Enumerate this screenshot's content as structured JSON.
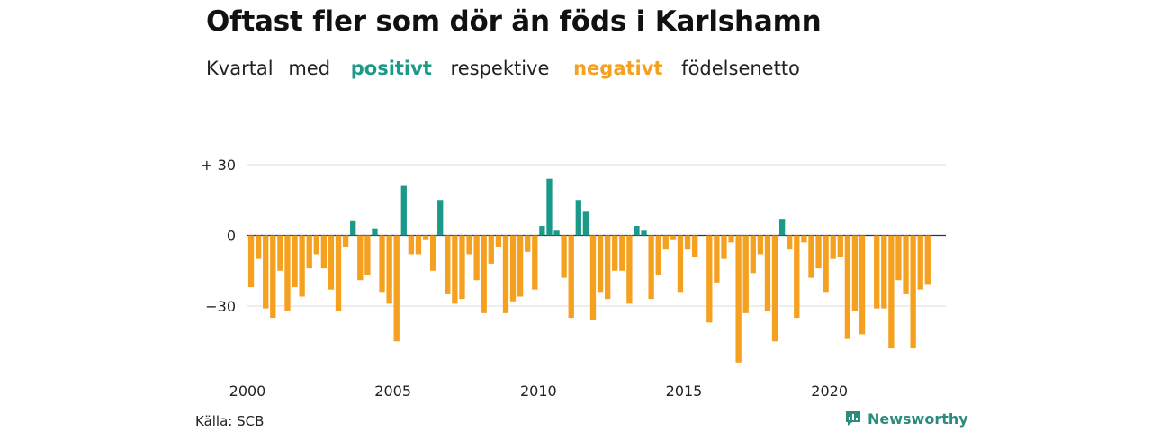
{
  "header": {
    "title": "Oftast fler som dör än föds i Karlshamn",
    "subtitle": {
      "w1": "Kvartal",
      "w2": "med",
      "positive": "positivt",
      "w3": "respektive",
      "negative": "negativt",
      "w4": "födelsenetto"
    }
  },
  "footer": {
    "source": "Källa: SCB",
    "brand": "Newsworthy"
  },
  "colors": {
    "positive": "#1b9a8a",
    "negative": "#f5a01f",
    "brand": "#2b8c7e"
  },
  "chart_data": {
    "type": "bar",
    "title": "Oftast fler som dör än föds i Karlshamn",
    "subtitle": "Kvartal med positivt respektive negativt födelsenetto",
    "xlabel": "",
    "ylabel": "",
    "ylim": [
      -55,
      30
    ],
    "y_ticks": [
      {
        "value": 30,
        "label": "+ 30"
      },
      {
        "value": 0,
        "label": "0"
      },
      {
        "value": -30,
        "label": "−30"
      }
    ],
    "x_ticks": [
      "2000",
      "2005",
      "2010",
      "2015",
      "2020"
    ],
    "grid": true,
    "categories": [
      "2000 Q1",
      "2000 Q2",
      "2000 Q3",
      "2000 Q4",
      "2001 Q1",
      "2001 Q2",
      "2001 Q3",
      "2001 Q4",
      "2002 Q1",
      "2002 Q2",
      "2002 Q3",
      "2002 Q4",
      "2003 Q1",
      "2003 Q2",
      "2003 Q3",
      "2003 Q4",
      "2004 Q1",
      "2004 Q2",
      "2004 Q3",
      "2004 Q4",
      "2005 Q1",
      "2005 Q2",
      "2005 Q3",
      "2005 Q4",
      "2006 Q1",
      "2006 Q2",
      "2006 Q3",
      "2006 Q4",
      "2007 Q1",
      "2007 Q2",
      "2007 Q3",
      "2007 Q4",
      "2008 Q1",
      "2008 Q2",
      "2008 Q3",
      "2008 Q4",
      "2009 Q1",
      "2009 Q2",
      "2009 Q3",
      "2009 Q4",
      "2010 Q1",
      "2010 Q2",
      "2010 Q3",
      "2010 Q4",
      "2011 Q1",
      "2011 Q2",
      "2011 Q3",
      "2011 Q4",
      "2012 Q1",
      "2012 Q2",
      "2012 Q3",
      "2012 Q4",
      "2013 Q1",
      "2013 Q2",
      "2013 Q3",
      "2013 Q4",
      "2014 Q1",
      "2014 Q2",
      "2014 Q3",
      "2014 Q4",
      "2015 Q1",
      "2015 Q2",
      "2015 Q3",
      "2015 Q4",
      "2016 Q1",
      "2016 Q2",
      "2016 Q3",
      "2016 Q4",
      "2017 Q1",
      "2017 Q2",
      "2017 Q3",
      "2017 Q4",
      "2018 Q1",
      "2018 Q2",
      "2018 Q3",
      "2018 Q4",
      "2019 Q1",
      "2019 Q2",
      "2019 Q3",
      "2019 Q4",
      "2020 Q1",
      "2020 Q2",
      "2020 Q3",
      "2020 Q4",
      "2021 Q1",
      "2021 Q2",
      "2021 Q3",
      "2021 Q4",
      "2022 Q1",
      "2022 Q2",
      "2022 Q3",
      "2022 Q4",
      "2023 Q1",
      "2023 Q2",
      "2023 Q3",
      "2023 Q4"
    ],
    "values": [
      -22,
      -10,
      -31,
      -35,
      -15,
      -32,
      -22,
      -26,
      -14,
      -8,
      -14,
      -23,
      -32,
      -5,
      6,
      -19,
      -17,
      3,
      -24,
      -29,
      -45,
      21,
      -8,
      -8,
      -2,
      -15,
      15,
      -25,
      -29,
      -27,
      -8,
      -19,
      -33,
      -12,
      -5,
      -33,
      -28,
      -26,
      -7,
      -23,
      4,
      24,
      2,
      -18,
      -35,
      15,
      10,
      -36,
      -24,
      -27,
      -15,
      -15,
      -29,
      4,
      2,
      -27,
      -17,
      -6,
      -2,
      -24,
      -6,
      -9,
      0,
      -37,
      -20,
      -10,
      -3,
      -54,
      -33,
      -16,
      -8,
      -32,
      -45,
      7,
      -6,
      -35,
      -3,
      -18,
      -14,
      -24,
      -10,
      -9,
      -44,
      -32,
      -42,
      0,
      -31,
      -31,
      -48,
      -19,
      -25,
      -48,
      -23,
      -21,
      0,
      0
    ]
  }
}
